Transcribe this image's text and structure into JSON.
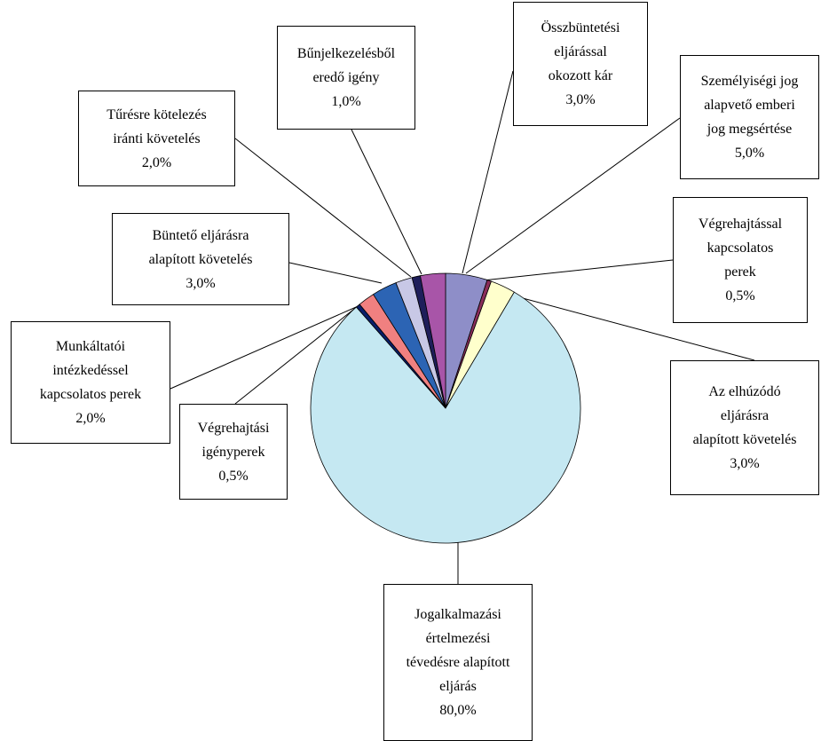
{
  "chart_data": {
    "type": "pie",
    "title": "",
    "slices": [
      {
        "lines": [
          "Személyiségi jog",
          "alapvető emberi",
          "jog megsértése"
        ],
        "pct": "5,0%",
        "value": 5.0,
        "color": "#8E8EC8"
      },
      {
        "lines": [
          "Végrehajtással",
          "kapcsolatos",
          "perek"
        ],
        "pct": "0,5%",
        "value": 0.5,
        "color": "#8A2D5A"
      },
      {
        "lines": [
          "Az elhúzódó",
          "eljárásra",
          "alapított követelés"
        ],
        "pct": "3,0%",
        "value": 3.0,
        "color": "#FFFFCC"
      },
      {
        "lines": [
          "Jogalkalmazási",
          "értelmezési",
          "tévedésre alapított",
          "eljárás"
        ],
        "pct": "80,0%",
        "value": 80.0,
        "color": "#C5E8F2"
      },
      {
        "lines": [
          "Végrehajtási",
          "igényperek"
        ],
        "pct": "0,5%",
        "value": 0.5,
        "color": "#0A1E6A"
      },
      {
        "lines": [
          "Munkáltatói",
          "intézkedéssel",
          "kapcsolatos perek"
        ],
        "pct": "2,0%",
        "value": 2.0,
        "color": "#F08080"
      },
      {
        "lines": [
          "Büntető eljárásra",
          "alapított követelés"
        ],
        "pct": "3,0%",
        "value": 3.0,
        "color": "#2C64B4"
      },
      {
        "lines": [
          "Tűrésre kötelezés",
          "iránti követelés"
        ],
        "pct": "2,0%",
        "value": 2.0,
        "color": "#C8C8E6"
      },
      {
        "lines": [
          "Bűnjelkezelésből",
          "eredő igény"
        ],
        "pct": "1,0%",
        "value": 1.0,
        "color": "#1E1E5A"
      },
      {
        "lines": [
          "Összbüntetési",
          "eljárással",
          "okozott kár"
        ],
        "pct": "3,0%",
        "value": 3.0,
        "color": "#A855A8"
      }
    ]
  }
}
